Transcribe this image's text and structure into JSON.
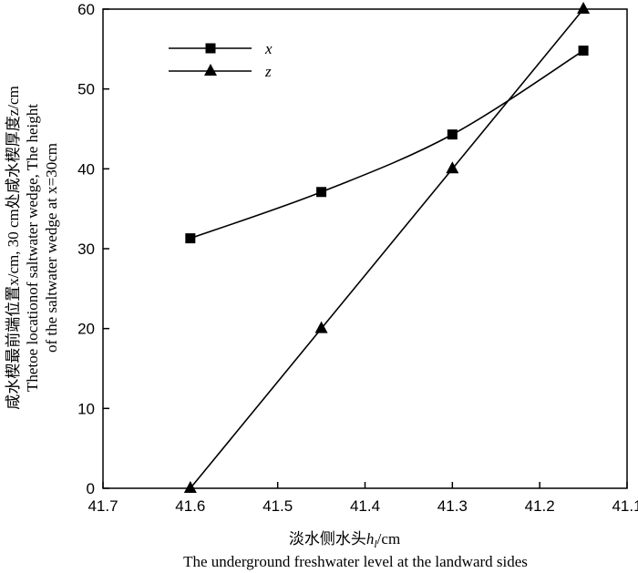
{
  "chart_data": {
    "type": "line",
    "x_reversed": true,
    "xlim": [
      41.7,
      41.1
    ],
    "ylim": [
      0,
      60
    ],
    "x_ticks": [
      41.7,
      41.6,
      41.5,
      41.4,
      41.3,
      41.2,
      41.1
    ],
    "x_tick_labels": [
      "41.7",
      "41.6",
      "41.5",
      "41.4",
      "41.3",
      "41.2",
      "41.1"
    ],
    "y_ticks": [
      0,
      10,
      20,
      30,
      40,
      50,
      60
    ],
    "y_tick_labels": [
      "0",
      "10",
      "20",
      "30",
      "40",
      "50",
      "60"
    ],
    "xlabel": "淡水侧水头h_l/cm",
    "xlabel_cn_prefix": "淡水侧水头",
    "xlabel_var": "h",
    "xlabel_sub": "l",
    "xlabel_unit": "/cm",
    "xlabel_en": "The underground freshwater level at the landward sides",
    "ylabel_line1": "咸水楔最前端位置x/cm, 30 cm处咸水楔厚度z/cm",
    "ylabel_line2": "Thetoe locationof saltwater wedge, The height",
    "ylabel_line3": "of the saltwater wedge at x=30cm",
    "legend_position": "top-left",
    "grid": false,
    "series": [
      {
        "name": "x",
        "marker": "square",
        "x": [
          41.6,
          41.45,
          41.3,
          41.15
        ],
        "values": [
          31.3,
          37.1,
          44.3,
          54.8
        ]
      },
      {
        "name": "z",
        "marker": "triangle",
        "x": [
          41.6,
          41.45,
          41.3,
          41.15
        ],
        "values": [
          0,
          20,
          40,
          60
        ]
      }
    ]
  }
}
